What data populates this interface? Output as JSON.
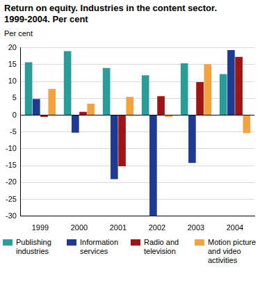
{
  "chart_data": {
    "type": "bar",
    "title": "Return on equity. Industries in the content sector. 1999-2004. Per cent",
    "y_label": "Per cent",
    "categories": [
      "1999",
      "2000",
      "2001",
      "2002",
      "2003",
      "2004"
    ],
    "series": [
      {
        "name": "Publishing industries",
        "color": "#2a9d9a",
        "values": [
          15.7,
          19.0,
          14.0,
          11.8,
          15.4,
          12.2
        ]
      },
      {
        "name": "Information services",
        "color": "#1f3a93",
        "values": [
          4.8,
          -5.2,
          -19.0,
          -30.0,
          -14.2,
          19.3
        ]
      },
      {
        "name": "Radio and television",
        "color": "#a01414",
        "values": [
          -0.5,
          1.0,
          -15.2,
          5.6,
          9.8,
          17.3
        ]
      },
      {
        "name": "Motion picture and video activities",
        "color": "#f4a340",
        "values": [
          7.8,
          3.4,
          5.4,
          -0.5,
          15.1,
          -5.3
        ]
      }
    ],
    "ylim": [
      -30,
      20
    ],
    "yticks": [
      -30,
      -25,
      -20,
      -15,
      -10,
      -5,
      0,
      5,
      10,
      15,
      20
    ],
    "grid": true,
    "legend": "bottom"
  }
}
